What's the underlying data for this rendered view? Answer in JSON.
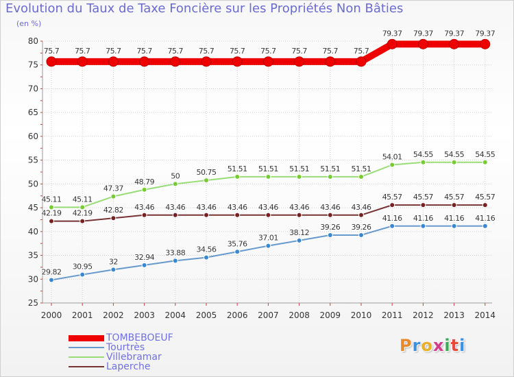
{
  "chart_data": {
    "type": "line",
    "title": "Evolution du Taux de Taxe Foncière sur les Propriétés Non Bâties",
    "ylabel": "(en %)",
    "xlabel": "",
    "ylim": [
      25,
      80
    ],
    "yticks": [
      25,
      30,
      35,
      40,
      45,
      50,
      55,
      60,
      65,
      70,
      75,
      80
    ],
    "categories": [
      "2000",
      "2001",
      "2002",
      "2003",
      "2004",
      "2005",
      "2006",
      "2007",
      "2008",
      "2009",
      "2010",
      "2011",
      "2012",
      "2013",
      "2014"
    ],
    "series": [
      {
        "name": "TOMBEBOEUF",
        "color": "#ee0000",
        "width": 10,
        "values": [
          75.7,
          75.7,
          75.7,
          75.7,
          75.7,
          75.7,
          75.7,
          75.7,
          75.7,
          75.7,
          75.7,
          79.37,
          79.37,
          79.37,
          79.37
        ],
        "labels": [
          "75.7",
          "75.7",
          "75.7",
          "75.7",
          "75.7",
          "75.7",
          "75.7",
          "75.7",
          "75.7",
          "75.7",
          "75.7",
          "79.37",
          "79.37",
          "79.37",
          "79.37"
        ]
      },
      {
        "name": "Tourtrès",
        "color": "#6699cc",
        "marker": "#3a88d0",
        "width": 2,
        "values": [
          29.82,
          30.95,
          32,
          32.94,
          33.88,
          34.56,
          35.76,
          37.01,
          38.12,
          39.26,
          39.26,
          41.16,
          41.16,
          41.16,
          41.16
        ],
        "labels": [
          "29.82",
          "30.95",
          "32",
          "32.94",
          "33.88",
          "34.56",
          "35.76",
          "37.01",
          "38.12",
          "39.26",
          "39.26",
          "41.16",
          "41.16",
          "41.16",
          "41.16"
        ]
      },
      {
        "name": "Villebramar",
        "color": "#99dd77",
        "marker": "#77cc33",
        "width": 2,
        "values": [
          45.11,
          45.11,
          47.37,
          48.79,
          50,
          50.75,
          51.51,
          51.51,
          51.51,
          51.51,
          51.51,
          54.01,
          54.55,
          54.55,
          54.55
        ],
        "labels": [
          "45.11",
          "45.11",
          "47.37",
          "48.79",
          "50",
          "50.75",
          "51.51",
          "51.51",
          "51.51",
          "51.51",
          "51.51",
          "54.01",
          "54.55",
          "54.55",
          "54.55"
        ]
      },
      {
        "name": "Laperche",
        "color": "#773333",
        "marker": "#772222",
        "width": 2,
        "values": [
          42.19,
          42.19,
          42.82,
          43.46,
          43.46,
          43.46,
          43.46,
          43.46,
          43.46,
          43.46,
          43.46,
          45.57,
          45.57,
          45.57,
          45.57
        ],
        "labels": [
          "42.19",
          "42.19",
          "42.82",
          "43.46",
          "43.46",
          "43.46",
          "43.46",
          "43.46",
          "43.46",
          "43.46",
          "43.46",
          "45.57",
          "45.57",
          "45.57",
          "45.57"
        ]
      }
    ],
    "legend": "bottom-left"
  },
  "logo": {
    "text": "Proxiti",
    "colors": [
      "#e88a2a",
      "#3d8fe0",
      "#e8b02a",
      "#d33c8a",
      "#3daa55",
      "#e84a3a",
      "#3d8fe0"
    ]
  }
}
